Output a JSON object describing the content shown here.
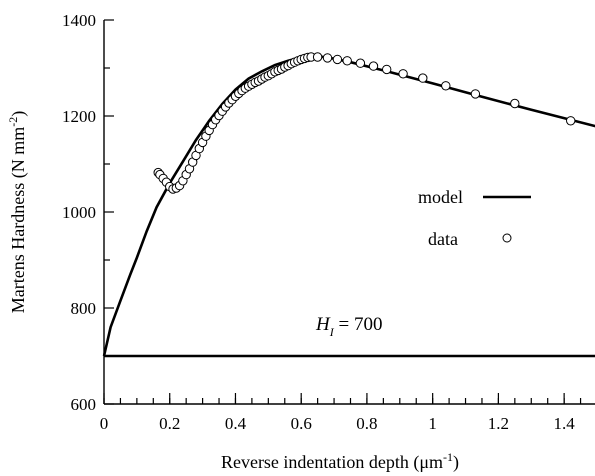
{
  "chart_data": {
    "type": "scatter",
    "xlabel": "Reverse indentation depth (μm",
    "xlabel_sup": "-1",
    "xlabel_close": ")",
    "ylabel": "Martens Hardness (N mm",
    "ylabel_sup": "-2",
    "ylabel_close": ")",
    "xlim": [
      0,
      1.5
    ],
    "ylim": [
      600,
      1400
    ],
    "xticks": [
      0,
      0.2,
      0.4,
      0.6,
      0.8,
      1,
      1.2,
      1.4
    ],
    "xtick_labels": [
      "0",
      "0.2",
      "0.4",
      "0.6",
      "0.8",
      "1",
      "1.2",
      "1.4"
    ],
    "yticks": [
      600,
      800,
      1000,
      1200,
      1400
    ],
    "ytick_labels": [
      "600",
      "800",
      "1000",
      "1200",
      "1400"
    ],
    "x_minor_step": 0.05,
    "grid": false,
    "legend": {
      "position": "center-right",
      "entries": [
        {
          "label": "model",
          "symbol": "line"
        },
        {
          "label": "data",
          "symbol": "open-circle"
        }
      ]
    },
    "annotation": {
      "H": "H",
      "sub": "I",
      "rest": " = 700"
    },
    "horizontal_line": {
      "y": 700
    },
    "series": [
      {
        "name": "model",
        "style": "line",
        "x": [
          0,
          0.02,
          0.05,
          0.08,
          0.1,
          0.13,
          0.16,
          0.2,
          0.24,
          0.28,
          0.32,
          0.36,
          0.4,
          0.44,
          0.48,
          0.52,
          0.56,
          0.6,
          0.64,
          0.68,
          0.75,
          0.85,
          1.0,
          1.15,
          1.3,
          1.5
        ],
        "y": [
          700,
          760,
          815,
          870,
          905,
          960,
          1010,
          1060,
          1105,
          1150,
          1190,
          1225,
          1255,
          1278,
          1293,
          1306,
          1315,
          1322,
          1325,
          1322,
          1312,
          1295,
          1268,
          1240,
          1213,
          1178
        ]
      },
      {
        "name": "data",
        "style": "open-circle",
        "x": [
          0.165,
          0.17,
          0.18,
          0.19,
          0.2,
          0.21,
          0.22,
          0.23,
          0.24,
          0.25,
          0.26,
          0.27,
          0.28,
          0.29,
          0.3,
          0.31,
          0.32,
          0.33,
          0.34,
          0.35,
          0.36,
          0.37,
          0.38,
          0.39,
          0.4,
          0.41,
          0.42,
          0.43,
          0.44,
          0.45,
          0.46,
          0.47,
          0.48,
          0.49,
          0.5,
          0.51,
          0.52,
          0.53,
          0.54,
          0.55,
          0.56,
          0.57,
          0.58,
          0.59,
          0.6,
          0.61,
          0.62,
          0.63,
          0.65,
          0.68,
          0.71,
          0.74,
          0.78,
          0.82,
          0.86,
          0.91,
          0.97,
          1.04,
          1.13,
          1.25,
          1.42
        ],
        "y": [
          1082,
          1078,
          1070,
          1062,
          1053,
          1048,
          1050,
          1055,
          1065,
          1078,
          1090,
          1104,
          1118,
          1132,
          1145,
          1158,
          1170,
          1182,
          1192,
          1201,
          1210,
          1219,
          1227,
          1234,
          1241,
          1247,
          1253,
          1258,
          1262,
          1266,
          1270,
          1273,
          1277,
          1281,
          1284,
          1288,
          1292,
          1295,
          1298,
          1302,
          1305,
          1309,
          1312,
          1315,
          1318,
          1320,
          1322,
          1323,
          1323,
          1321,
          1318,
          1315,
          1310,
          1304,
          1297,
          1288,
          1279,
          1263,
          1246,
          1226,
          1190
        ]
      }
    ]
  }
}
